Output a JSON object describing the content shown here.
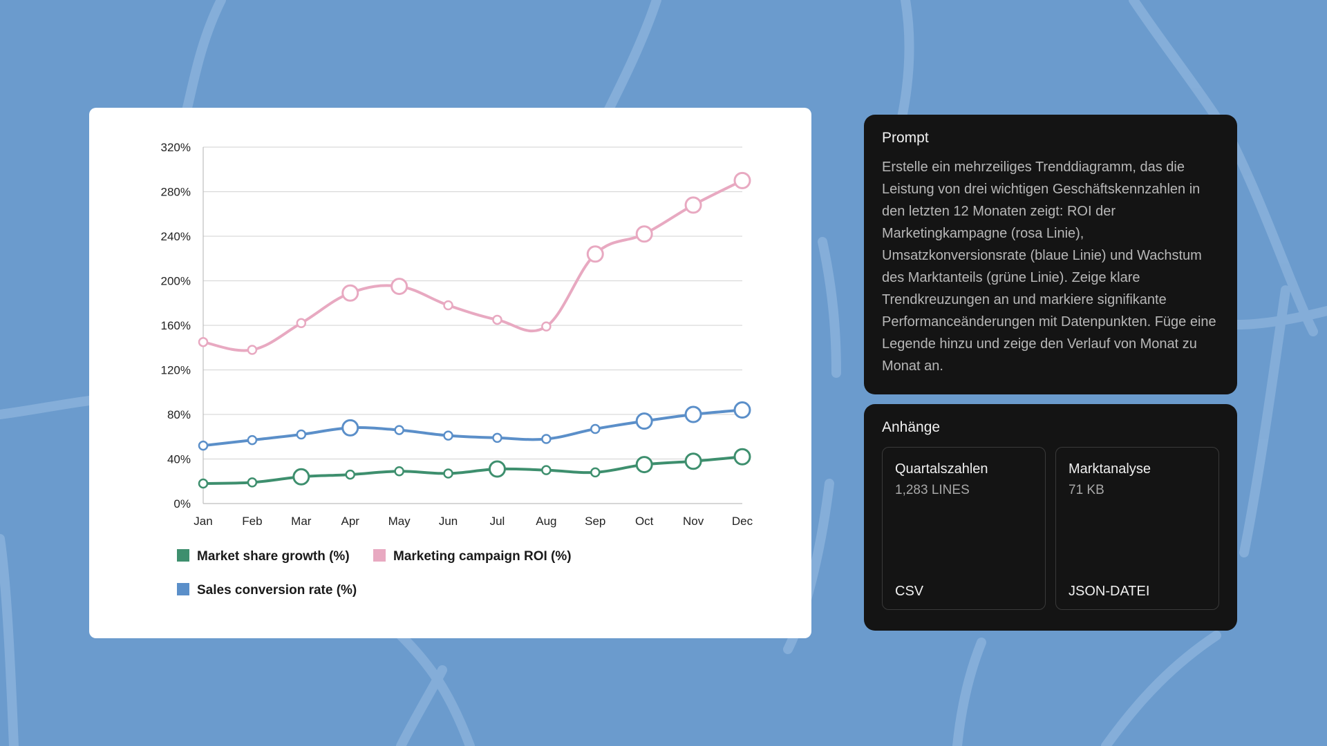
{
  "chart_data": {
    "type": "line",
    "title": "",
    "xlabel": "",
    "ylabel": "",
    "categories": [
      "Jan",
      "Feb",
      "Mar",
      "Apr",
      "May",
      "Jun",
      "Jul",
      "Aug",
      "Sep",
      "Oct",
      "Nov",
      "Dec"
    ],
    "ylim": [
      0,
      320
    ],
    "yticks": [
      0,
      40,
      80,
      120,
      160,
      200,
      240,
      280,
      320
    ],
    "ytick_labels": [
      "0%",
      "40%",
      "80%",
      "120%",
      "160%",
      "200%",
      "240%",
      "280%",
      "320%"
    ],
    "grid": "horizontal",
    "legend_position": "bottom-left",
    "series": [
      {
        "name": "Market share growth (%)",
        "color": "#3e8f6e",
        "values": [
          18,
          19,
          24,
          26,
          29,
          27,
          31,
          30,
          28,
          35,
          38,
          42
        ]
      },
      {
        "name": "Marketing campaign ROI (%)",
        "color": "#e8a9c1",
        "values": [
          145,
          138,
          162,
          189,
          195,
          178,
          165,
          159,
          224,
          242,
          268,
          290
        ]
      },
      {
        "name": "Sales conversion rate (%)",
        "color": "#5b8fc9",
        "values": [
          52,
          57,
          62,
          68,
          66,
          61,
          59,
          58,
          67,
          74,
          80,
          84
        ]
      }
    ],
    "emphasized_points": {
      "Market share growth (%)": [
        2,
        6,
        9,
        10,
        11
      ],
      "Marketing campaign ROI (%)": [
        3,
        4,
        8,
        9,
        10,
        11
      ],
      "Sales conversion rate (%)": [
        3,
        9,
        10,
        11
      ]
    }
  },
  "prompt": {
    "title": "Prompt",
    "text": "Erstelle ein mehrzeiliges Trenddiagramm, das die Leistung von drei wichtigen Geschäftskennzahlen in den letzten 12 Monaten zeigt: ROI der Marketingkampagne (rosa Linie), Umsatzkonversionsrate (blaue Linie) und Wachstum des Marktanteils (grüne Linie). Zeige klare Trendkreuzungen an und markiere signifikante Performanceänderungen mit Datenpunkten. Füge eine Legende hinzu und zeige den Verlauf von Monat zu Monat an."
  },
  "attachments": {
    "title": "Anhänge",
    "files": [
      {
        "name": "Quartalszahlen",
        "meta": "1,283 LINES",
        "type": "CSV"
      },
      {
        "name": "Marktanalyse",
        "meta": "71 KB",
        "type": "JSON-DATEI"
      }
    ]
  },
  "colors": {
    "background": "#6b9bcd",
    "panel": "#141414",
    "card": "#ffffff"
  }
}
